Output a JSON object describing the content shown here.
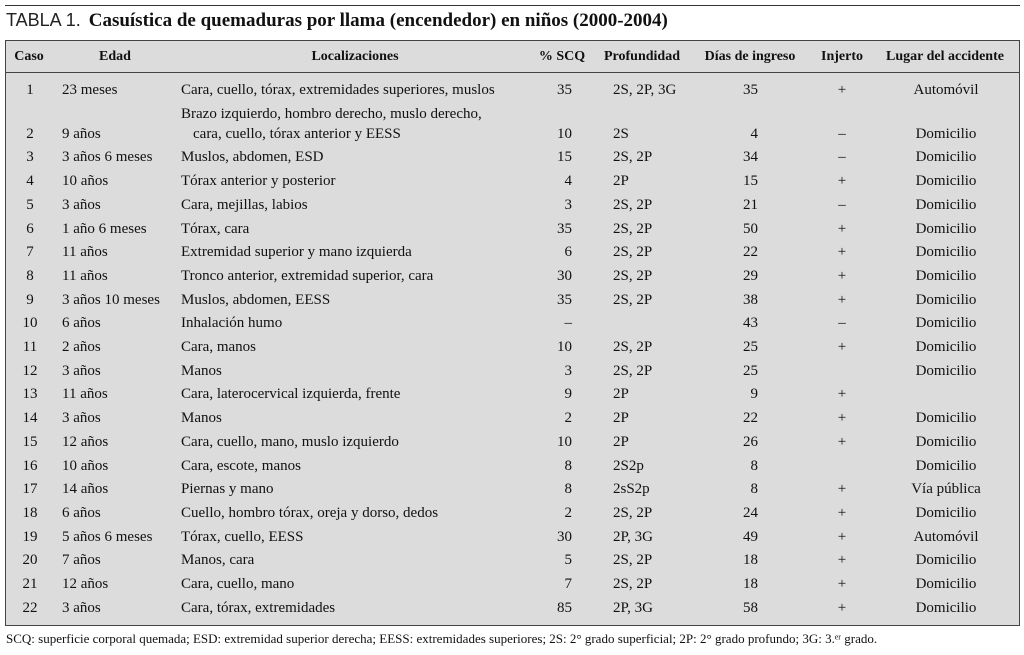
{
  "title": {
    "label": "TABLA 1.",
    "text": "Casuística de quemaduras por llama (encendedor) en niños (2000-2004)"
  },
  "table": {
    "headers": [
      "Caso",
      "Edad",
      "Localizaciones",
      "% SCQ",
      "Profundidad",
      "Días de ingreso",
      "Injerto",
      "Lugar del accidente"
    ],
    "rows": [
      [
        "1",
        "23 meses",
        "Cara, cuello, tórax, extremidades superiores, muslos",
        "35",
        "2S, 2P, 3G",
        "35",
        "+",
        "Automóvil"
      ],
      [
        "2",
        "9 años",
        [
          "Brazo izquierdo, hombro derecho, muslo derecho,",
          "cara, cuello, tórax anterior y EESS"
        ],
        "10",
        "2S",
        "4",
        "–",
        "Domicilio"
      ],
      [
        "3",
        "3 años 6 meses",
        "Muslos, abdomen, ESD",
        "15",
        "2S, 2P",
        "34",
        "–",
        "Domicilio"
      ],
      [
        "4",
        "10 años",
        "Tórax anterior y posterior",
        "4",
        "2P",
        "15",
        "+",
        "Domicilio"
      ],
      [
        "5",
        "3 años",
        "Cara, mejillas, labios",
        "3",
        "2S, 2P",
        "21",
        "–",
        "Domicilio"
      ],
      [
        "6",
        "1 año 6 meses",
        "Tórax, cara",
        "35",
        "2S, 2P",
        "50",
        "+",
        "Domicilio"
      ],
      [
        "7",
        "11 años",
        "Extremidad superior y mano izquierda",
        "6",
        "2S, 2P",
        "22",
        "+",
        "Domicilio"
      ],
      [
        "8",
        "11 años",
        "Tronco anterior, extremidad superior, cara",
        "30",
        "2S, 2P",
        "29",
        "+",
        "Domicilio"
      ],
      [
        "9",
        "3 años 10 meses",
        "Muslos, abdomen, EESS",
        "35",
        "2S, 2P",
        "38",
        "+",
        "Domicilio"
      ],
      [
        "10",
        "6 años",
        "Inhalación humo",
        "–",
        null,
        "43",
        "–",
        "Domicilio"
      ],
      [
        "11",
        "2 años",
        "Cara, manos",
        "10",
        "2S, 2P",
        "25",
        "+",
        "Domicilio"
      ],
      [
        "12",
        "3 años",
        "Manos",
        "3",
        "2S, 2P",
        "25",
        null,
        "Domicilio"
      ],
      [
        "13",
        "11 años",
        "Cara, laterocervical izquierda, frente",
        "9",
        "2P",
        "9",
        "+",
        null
      ],
      [
        "14",
        "3 años",
        "Manos",
        "2",
        "2P",
        "22",
        "+",
        "Domicilio"
      ],
      [
        "15",
        "12 años",
        "Cara, cuello, mano, muslo izquierdo",
        "10",
        "2P",
        "26",
        "+",
        "Domicilio"
      ],
      [
        "16",
        "10 años",
        "Cara, escote, manos",
        "8",
        "2S2p",
        "8",
        null,
        "Domicilio"
      ],
      [
        "17",
        "14 años",
        "Piernas y mano",
        "8",
        "2sS2p",
        "8",
        "+",
        "Vía pública"
      ],
      [
        "18",
        "6 años",
        "Cuello, hombro tórax, oreja y dorso, dedos",
        "2",
        "2S, 2P",
        "24",
        "+",
        "Domicilio"
      ],
      [
        "19",
        "5 años 6 meses",
        "Tórax, cuello, EESS",
        "30",
        "2P, 3G",
        "49",
        "+",
        "Automóvil"
      ],
      [
        "20",
        "7 años",
        "Manos, cara",
        "5",
        "2S, 2P",
        "18",
        "+",
        "Domicilio"
      ],
      [
        "21",
        "12 años",
        "Cara, cuello, mano",
        "7",
        "2S, 2P",
        "18",
        "+",
        "Domicilio"
      ],
      [
        "22",
        "3 años",
        "Cara, tórax, extremidades",
        "85",
        "2P, 3G",
        "58",
        "+",
        "Domicilio"
      ]
    ]
  },
  "footnote": "SCQ: superficie corporal quemada; ESD: extremidad superior derecha; EESS: extremidades superiores; 2S: 2° grado superficial; 2P: 2° grado profundo; 3G: 3.ᵉʳ grado."
}
